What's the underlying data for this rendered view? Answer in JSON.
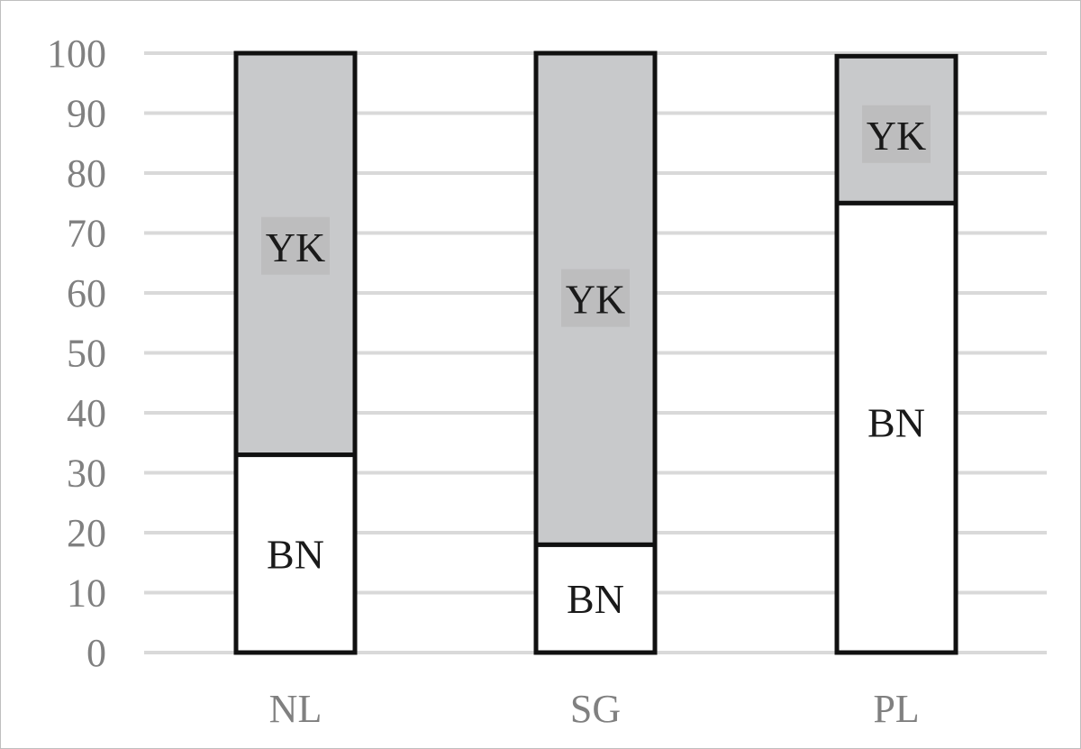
{
  "chart_data": {
    "type": "bar",
    "stacked": true,
    "categories": [
      "NL",
      "SG",
      "PL"
    ],
    "series": [
      {
        "name": "BN",
        "values": [
          33,
          18,
          75
        ],
        "color": "#ffffff"
      },
      {
        "name": "YK",
        "values": [
          67,
          82,
          24.5
        ],
        "color": "#c8c9cb"
      }
    ],
    "segment_labels": [
      "BN",
      "YK"
    ],
    "label_box_color": "#bdbdbe",
    "ylim": [
      0,
      100
    ],
    "yticks": [
      "0",
      "10",
      "20",
      "30",
      "40",
      "50",
      "60",
      "70",
      "80",
      "90",
      "100"
    ],
    "title": "",
    "xlabel": "",
    "ylabel": "",
    "grid": true,
    "gridline_color": "#d9d9d9",
    "bar_outline_color": "#111111"
  }
}
